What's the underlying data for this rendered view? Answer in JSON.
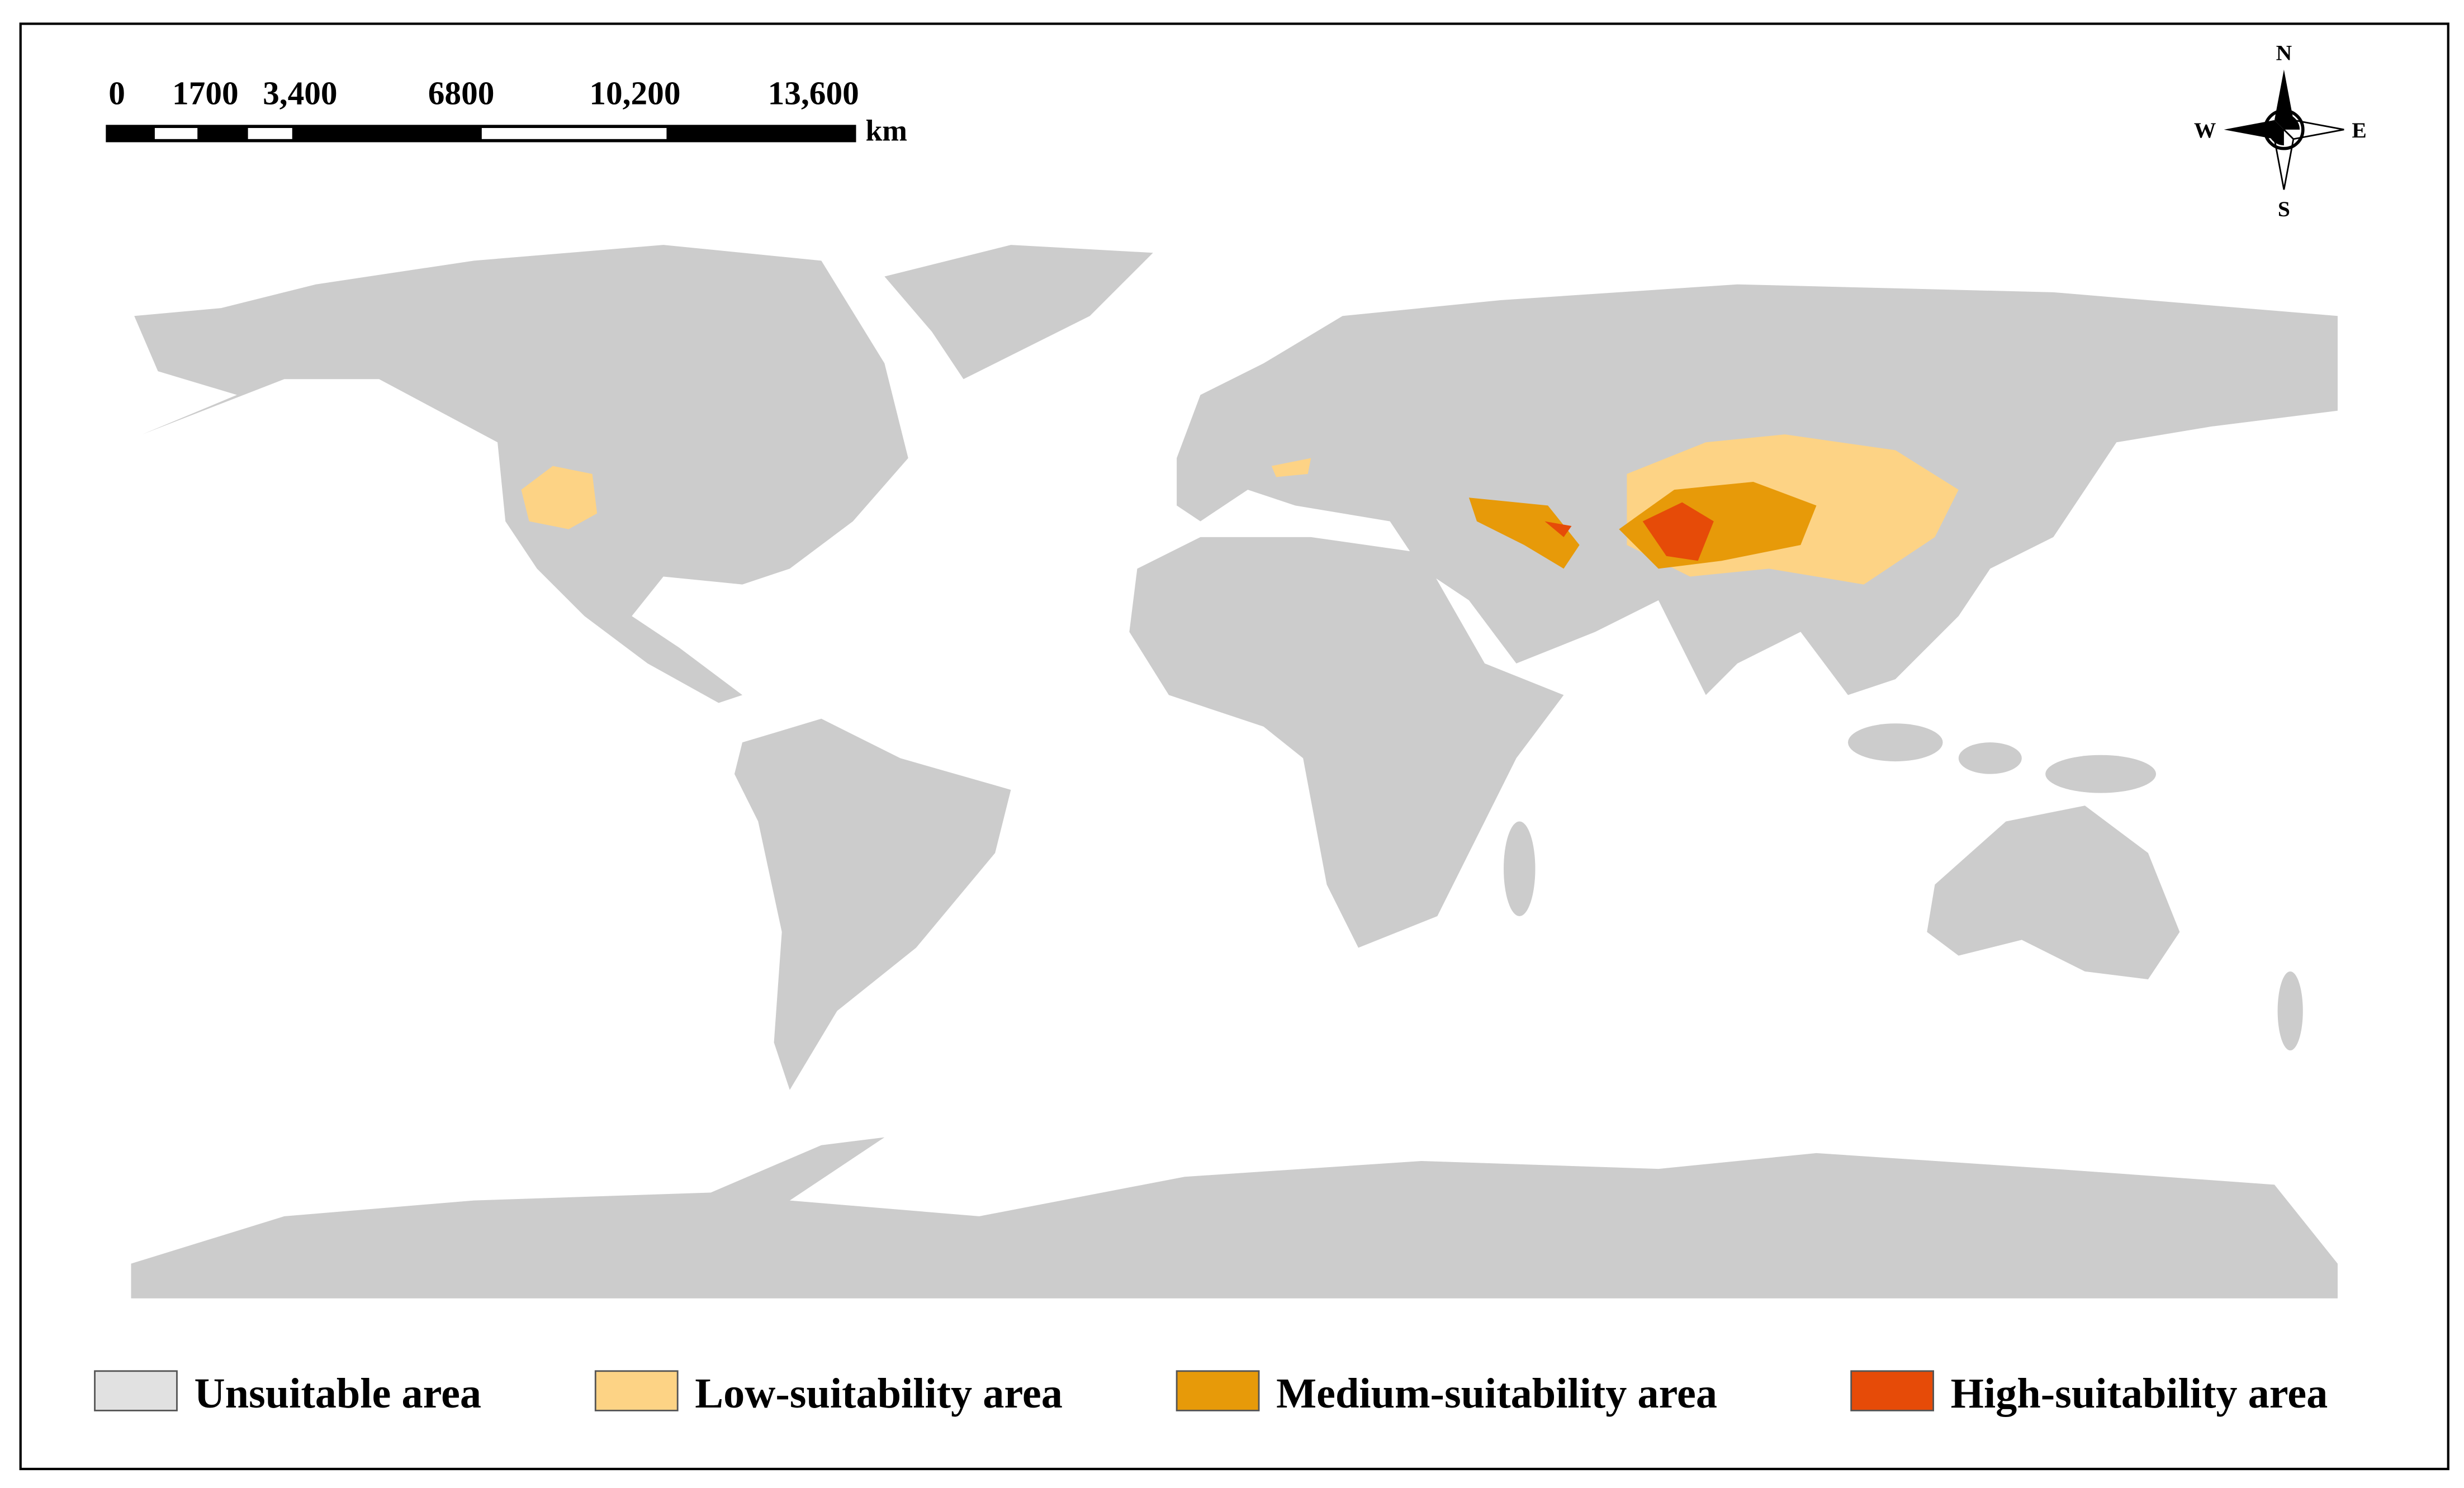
{
  "scale_bar": {
    "labels": [
      "0",
      "1700",
      "3,400",
      "6800",
      "10,200",
      "13,600"
    ],
    "unit": "km"
  },
  "compass": {
    "north": "N",
    "south": "S",
    "east": "E",
    "west": "W"
  },
  "legend": [
    {
      "label": "Unsuitable area",
      "color": "#e1e1e1"
    },
    {
      "label": "Low-suitability area",
      "color": "#fdd385"
    },
    {
      "label": "Medium-suitability area",
      "color": "#e79a09"
    },
    {
      "label": "High-suitability area",
      "color": "#e64b08"
    }
  ]
}
